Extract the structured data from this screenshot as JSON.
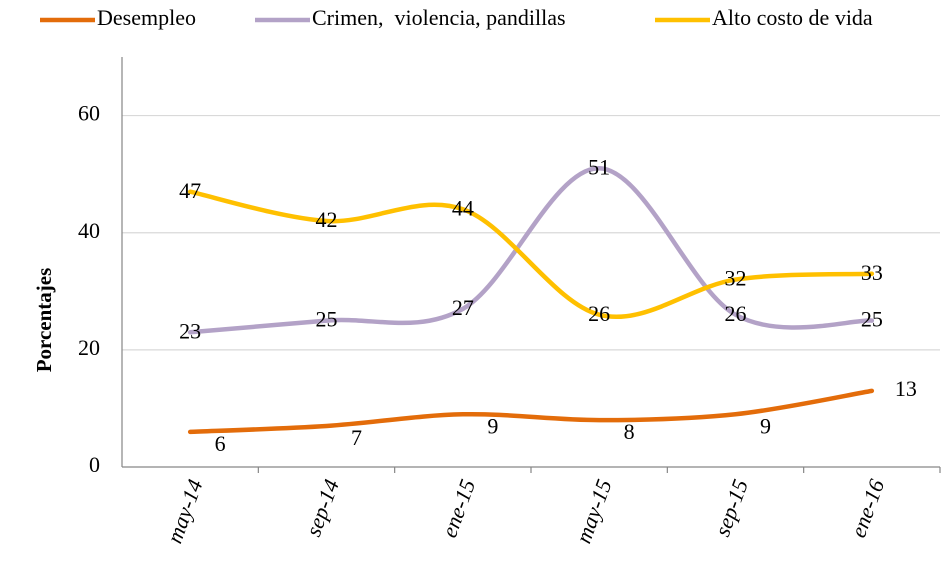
{
  "chart_data": {
    "type": "line",
    "y_label": "Porcentajes",
    "categories": [
      "may-14",
      "sep-14",
      "ene-15",
      "may-15",
      "sep-15",
      "ene-16"
    ],
    "series": [
      {
        "name": "Desempleo",
        "color": "#e36c0a",
        "values": [
          6,
          7,
          9,
          8,
          9,
          13
        ]
      },
      {
        "name": "Crimen,  violencia, pandillas",
        "color": "#b3a2c7",
        "values": [
          23,
          25,
          27,
          51,
          26,
          25
        ]
      },
      {
        "name": "Alto costo de vida",
        "color": "#ffc000",
        "values": [
          47,
          42,
          44,
          26,
          32,
          33
        ]
      }
    ],
    "ylim": [
      0,
      70
    ],
    "yticks": [
      0,
      20,
      40,
      60
    ],
    "grid": true,
    "smooth": true,
    "legend": "top"
  }
}
